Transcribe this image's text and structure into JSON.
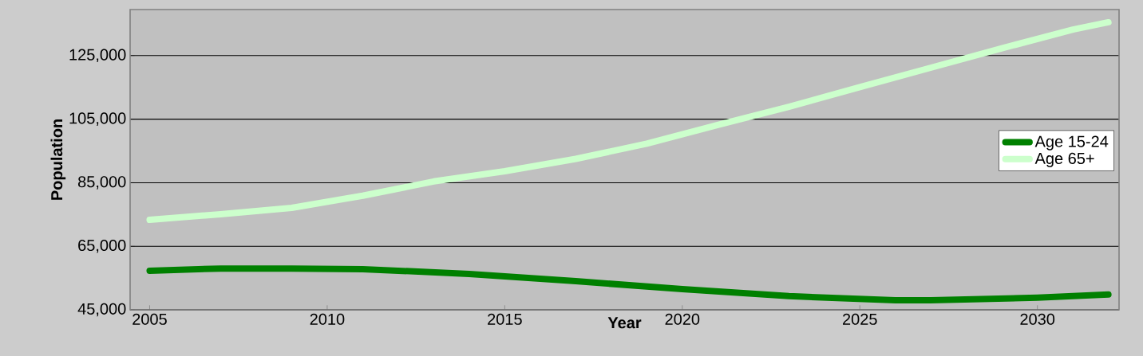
{
  "chart_data": {
    "type": "line",
    "xlabel": "Year",
    "ylabel": "Population",
    "xlim": [
      2004.45,
      2032.3
    ],
    "xticks": [
      2005,
      2010,
      2015,
      2020,
      2025,
      2030
    ],
    "ylim": [
      45000,
      139500
    ],
    "yticks": [
      {
        "value": 45000,
        "label": "45,000"
      },
      {
        "value": 65000,
        "label": "65,000"
      },
      {
        "value": 85000,
        "label": "85,000"
      },
      {
        "value": 105000,
        "label": "105,000"
      },
      {
        "value": 125000,
        "label": "125,000"
      }
    ],
    "grid": "y",
    "legend": "right",
    "line_style": "solid",
    "series": [
      {
        "name": "Age 15-24",
        "color": "#008000",
        "x": [
          2005,
          2007,
          2009,
          2011,
          2014,
          2017,
          2020,
          2023,
          2026,
          2027,
          2030,
          2032
        ],
        "values": [
          57300,
          58000,
          58000,
          57800,
          56300,
          54000,
          51500,
          49300,
          48000,
          48000,
          48800,
          49800
        ]
      },
      {
        "name": "Age 65+",
        "color": "#ccffcc",
        "x": [
          2005,
          2007,
          2009,
          2011,
          2013,
          2015,
          2017,
          2019,
          2021,
          2023,
          2025,
          2027,
          2029,
          2031,
          2032
        ],
        "values": [
          73300,
          75100,
          77100,
          80900,
          85400,
          88600,
          92500,
          97300,
          103200,
          108900,
          115100,
          121200,
          127300,
          133200,
          135500
        ]
      }
    ]
  }
}
